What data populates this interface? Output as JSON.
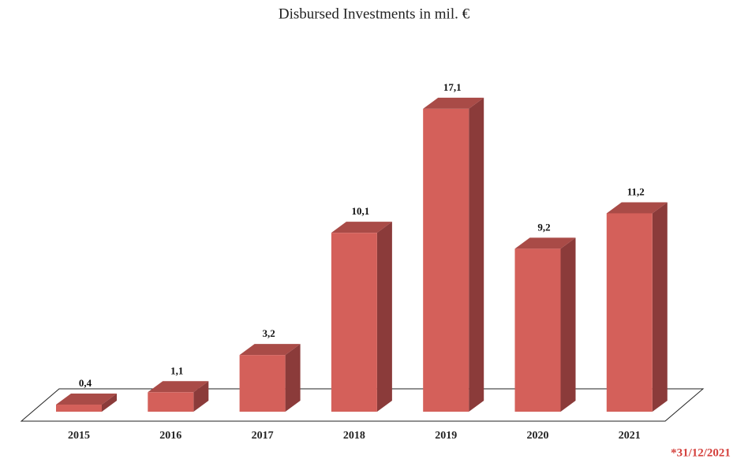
{
  "chart_data": {
    "type": "bar3d",
    "title": "Disbursed Investments in mil. €",
    "categories": [
      "2015",
      "2016",
      "2017",
      "2018",
      "2019",
      "2020",
      "2021"
    ],
    "values": [
      0.4,
      1.1,
      3.2,
      10.1,
      17.1,
      9.2,
      11.2
    ],
    "value_labels": [
      "0,4",
      "1,1",
      "3,2",
      "10,1",
      "17,1",
      "9,2",
      "11,2"
    ],
    "color": "#d4605a",
    "annotation": "*31/12/2021"
  }
}
